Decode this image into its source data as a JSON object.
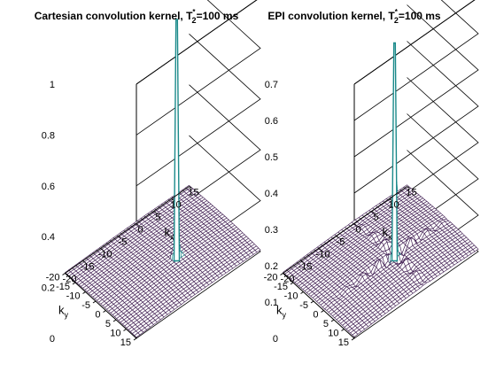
{
  "chart_data": [
    {
      "type": "surface",
      "title": {
        "prefix": "Cartesian convolution kernel, T",
        "sub": "2",
        "sup": "*",
        "suffix": "=100 ms"
      },
      "xlabel": {
        "main": "k",
        "sub": "x"
      },
      "ylabel": {
        "main": "k",
        "sub": "y"
      },
      "xlim": [
        -20,
        15
      ],
      "ylim": [
        -20,
        15
      ],
      "zlim": [
        0,
        1
      ],
      "x_ticks": [
        "-20",
        "-15",
        "-10",
        "-5",
        "0",
        "5",
        "10",
        "15"
      ],
      "y_ticks": [
        "-20",
        "-15",
        "-10",
        "-5",
        "0",
        "5",
        "10",
        "15"
      ],
      "z_ticks": [
        "0",
        "0.2",
        "0.4",
        "0.6",
        "0.8",
        "1"
      ],
      "peak": {
        "x": 0,
        "y": 0,
        "z": 0.95
      },
      "floor_level": 0.02,
      "ringing": false,
      "mesh_color": "#3d1a4f",
      "peak_color": "#1a8a8a"
    },
    {
      "type": "surface",
      "title": {
        "prefix": "EPI convolution kernel, T",
        "sub": "2",
        "sup": "*",
        "suffix": "=100 ms"
      },
      "xlabel": {
        "main": "k",
        "sub": "x"
      },
      "ylabel": {
        "main": "k",
        "sub": "y"
      },
      "xlim": [
        -20,
        15
      ],
      "ylim": [
        -20,
        15
      ],
      "zlim": [
        0,
        0.7
      ],
      "x_ticks": [
        "-20",
        "-15",
        "-10",
        "-5",
        "0",
        "5",
        "10",
        "15"
      ],
      "y_ticks": [
        "-20",
        "-15",
        "-10",
        "-5",
        "0",
        "5",
        "10",
        "15"
      ],
      "z_ticks": [
        "0",
        "0.1",
        "0.2",
        "0.3",
        "0.4",
        "0.5",
        "0.6",
        "0.7"
      ],
      "peak": {
        "x": 0,
        "y": 0,
        "z": 0.6
      },
      "floor_level": 0.02,
      "ringing": true,
      "mesh_color": "#3d1a4f",
      "peak_color": "#1a8a8a"
    }
  ]
}
